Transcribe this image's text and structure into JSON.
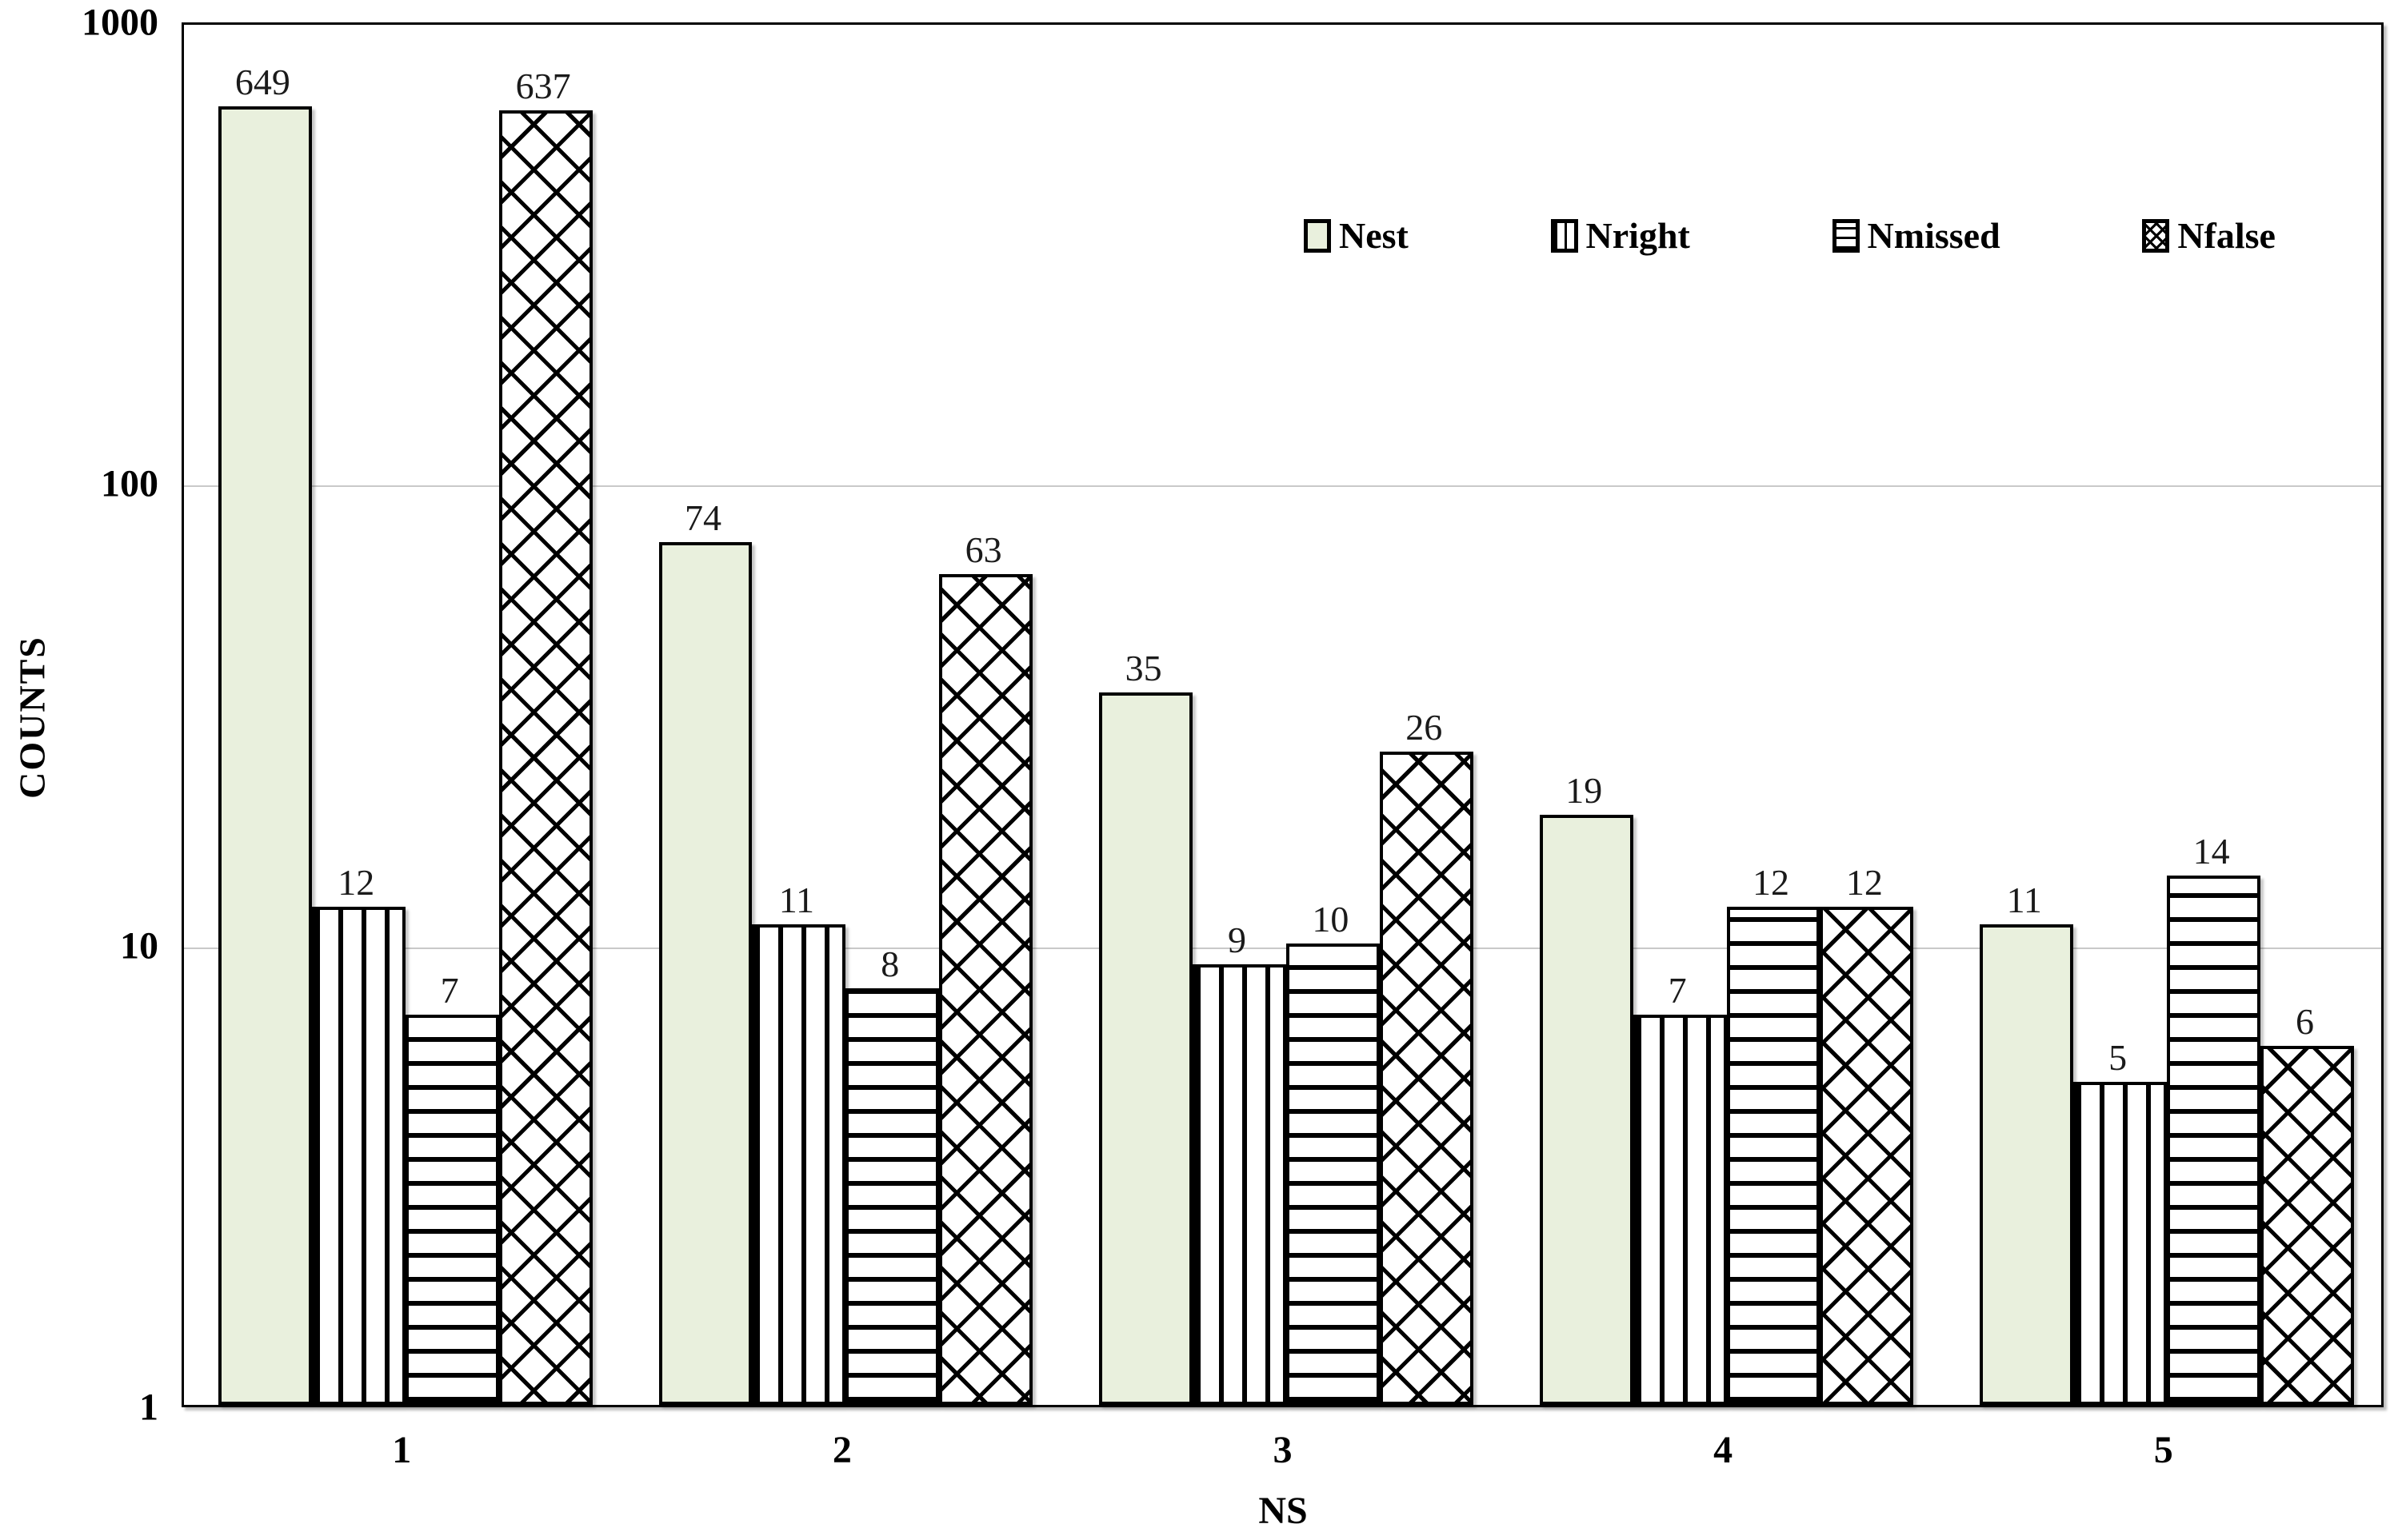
{
  "chart_data": {
    "type": "bar",
    "y_scale": "log10",
    "ylim": [
      1,
      1000
    ],
    "y_ticks": [
      1000,
      100,
      10,
      1
    ],
    "gridlines": [
      100,
      10
    ],
    "grid": "horizontal-only",
    "xlabel": "NS",
    "ylabel": "COUNTS",
    "categories": [
      "1",
      "2",
      "3",
      "4",
      "5"
    ],
    "legend_position": "top-right-inside",
    "data_labels": true,
    "bar_outline": "#000000",
    "series": [
      {
        "name": "Nest",
        "pattern": "solid",
        "fill": "#e9f0dd",
        "values": [
          649,
          74,
          35,
          19,
          11
        ]
      },
      {
        "name": "Nright",
        "pattern": "vertical-stripes",
        "fill": "#ffffff",
        "values": [
          12,
          11,
          9,
          7,
          5
        ]
      },
      {
        "name": "Nmissed",
        "pattern": "horizontal-stripes",
        "fill": "#ffffff",
        "values": [
          7,
          8,
          10,
          12,
          14
        ]
      },
      {
        "name": "Nfalse",
        "pattern": "crosshatch",
        "fill": "#ffffff",
        "values": [
          637,
          63,
          26,
          12,
          6
        ]
      }
    ]
  }
}
